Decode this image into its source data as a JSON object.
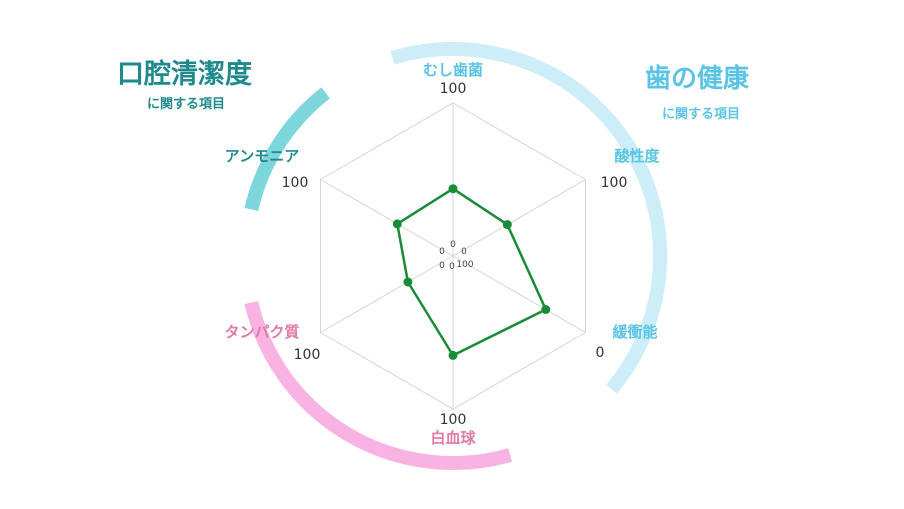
{
  "groups": {
    "oral": {
      "title": "口腔清潔度",
      "subtitle": "に関する項目",
      "color": "#1f8a8c",
      "arc_color": "#7dd6dc"
    },
    "teeth": {
      "title": "歯の健康",
      "subtitle": "に関する項目",
      "color": "#5bc4e6",
      "arc_color": "#cdeef9"
    },
    "blood": {
      "color": "#e27aa5",
      "arc_color": "#f8b3e3"
    }
  },
  "colors": {
    "grid": "#d6d6d6",
    "series": "#1a8c38"
  },
  "chart_data": {
    "type": "radar",
    "title": "",
    "axes": [
      {
        "label": "むし歯菌",
        "max_label": "100",
        "center_label": "0",
        "group": "teeth"
      },
      {
        "label": "酸性度",
        "max_label": "100",
        "center_label": "0",
        "group": "teeth"
      },
      {
        "label": "緩衝能",
        "max_label": "0",
        "center_label": "100",
        "group": "teeth"
      },
      {
        "label": "白血球",
        "max_label": "100",
        "center_label": "0",
        "group": "blood"
      },
      {
        "label": "タンパク質",
        "max_label": "100",
        "center_label": "0",
        "group": "blood"
      },
      {
        "label": "アンモニア",
        "max_label": "100",
        "center_label": "0",
        "group": "oral"
      }
    ],
    "ylim": [
      0,
      100
    ],
    "grid": true,
    "series": [
      {
        "values": [
          44,
          41,
          70,
          65,
          34,
          42
        ]
      }
    ]
  }
}
